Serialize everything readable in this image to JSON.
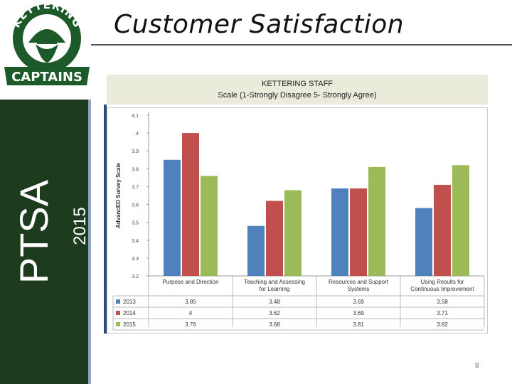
{
  "slide": {
    "title": "Customer Satisfaction",
    "side_label": "PTSA",
    "side_year": "2015",
    "page_number": "8",
    "caption_line1": "KETTERING STAFF",
    "caption_line2": "Scale (1-Strongly Disagree 5- Strongly Agree)"
  },
  "logo": {
    "top_text": "KETTERING",
    "bottom_text": "CAPTAINS",
    "colors": {
      "green": "#1d5a2a",
      "white": "#ffffff"
    }
  },
  "chart_data": {
    "type": "bar",
    "title": "",
    "xlabel": "",
    "ylabel": "AdvancED Survey Scale",
    "ylim": [
      3.2,
      4.1
    ],
    "yticks": [
      "3.2",
      "3.3",
      "3.4",
      "3.5",
      "3.6",
      "3.7",
      "3.8",
      "3.9",
      "4",
      "4.1"
    ],
    "yvalues": [
      3.2,
      3.3,
      3.4,
      3.5,
      3.6,
      3.7,
      3.8,
      3.9,
      4.0,
      4.1
    ],
    "grid": false,
    "legend": "data-table",
    "categories": [
      "Purpose and Direction",
      "Teaching and Assessing for Learning",
      "Resources and Support Systems",
      "Using Results for Continuous Improvement"
    ],
    "category_lines": [
      [
        "Purpose and Direction"
      ],
      [
        "Teaching and Assessing",
        "for Learning"
      ],
      [
        "Resources and Support",
        "Systems"
      ],
      [
        "Using Results for",
        "Continuous Improvement"
      ]
    ],
    "series": [
      {
        "name": "2013",
        "color": "#4f81bd",
        "values": [
          3.85,
          3.48,
          3.69,
          3.58
        ],
        "labels": [
          "3.85",
          "3.48",
          "3.69",
          "3.58"
        ]
      },
      {
        "name": "2014",
        "color": "#c0504d",
        "values": [
          4.0,
          3.62,
          3.69,
          3.71
        ],
        "labels": [
          "4",
          "3.62",
          "3.69",
          "3.71"
        ]
      },
      {
        "name": "2015",
        "color": "#9bbb59",
        "values": [
          3.76,
          3.68,
          3.81,
          3.82
        ],
        "labels": [
          "3.76",
          "3.68",
          "3.81",
          "3.82"
        ]
      }
    ]
  }
}
